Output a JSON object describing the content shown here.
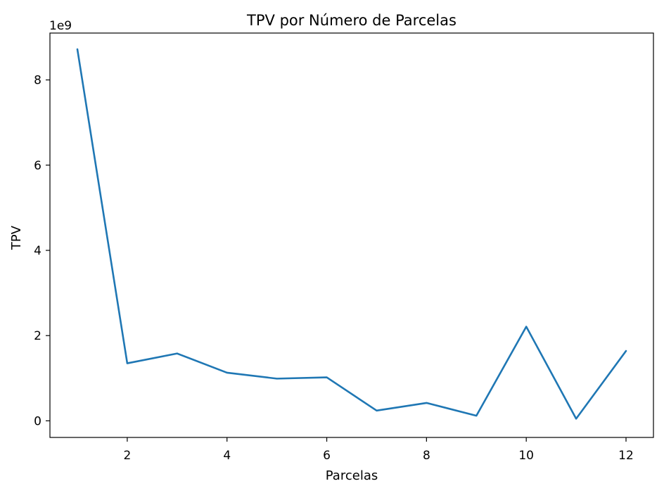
{
  "chart_data": {
    "type": "line",
    "title": "TPV por Número de Parcelas",
    "xlabel": "Parcelas",
    "ylabel": "TPV",
    "y_offset_label": "1e9",
    "x": [
      1,
      2,
      3,
      4,
      5,
      6,
      7,
      8,
      9,
      10,
      11,
      12
    ],
    "series": [
      {
        "values": [
          8720000000,
          1350000000,
          1580000000,
          1130000000,
          990000000,
          1020000000,
          240000000,
          420000000,
          120000000,
          2210000000,
          50000000,
          1640000000
        ],
        "color": "#1f77b4"
      }
    ],
    "xticks": [
      2,
      4,
      6,
      8,
      10,
      12
    ],
    "xtick_labels": [
      "2",
      "4",
      "6",
      "8",
      "10",
      "12"
    ],
    "yticks": [
      0,
      2000000000,
      4000000000,
      6000000000,
      8000000000
    ],
    "ytick_labels": [
      "0",
      "2",
      "4",
      "6",
      "8"
    ],
    "xlim": [
      0.45,
      12.55
    ],
    "ylim": [
      -390000000,
      9100000000
    ],
    "grid": false,
    "legend": "none"
  }
}
